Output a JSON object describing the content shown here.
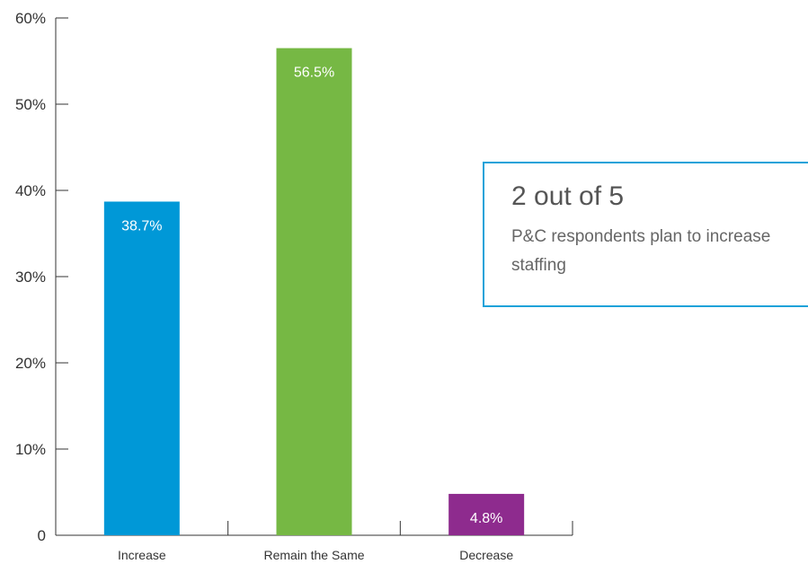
{
  "chart_data": {
    "type": "bar",
    "categories": [
      "Increase",
      "Remain the Same",
      "Decrease"
    ],
    "values": [
      38.7,
      56.5,
      4.8
    ],
    "value_labels": [
      "38.7%",
      "56.5%",
      "4.8%"
    ],
    "colors": [
      "#0098d7",
      "#76b844",
      "#8e2b8e"
    ],
    "ylim": [
      0,
      60
    ],
    "yticks": [
      0,
      10,
      20,
      30,
      40,
      50,
      60
    ],
    "ytick_labels": [
      "0",
      "10%",
      "20%",
      "30%",
      "40%",
      "50%",
      "60%"
    ],
    "title": "",
    "xlabel": "",
    "ylabel": "",
    "grid": false
  },
  "callout": {
    "headline": "2 out of 5",
    "body": "P&C respondents plan to increase staffing",
    "border_color": "#1ba2d9"
  }
}
